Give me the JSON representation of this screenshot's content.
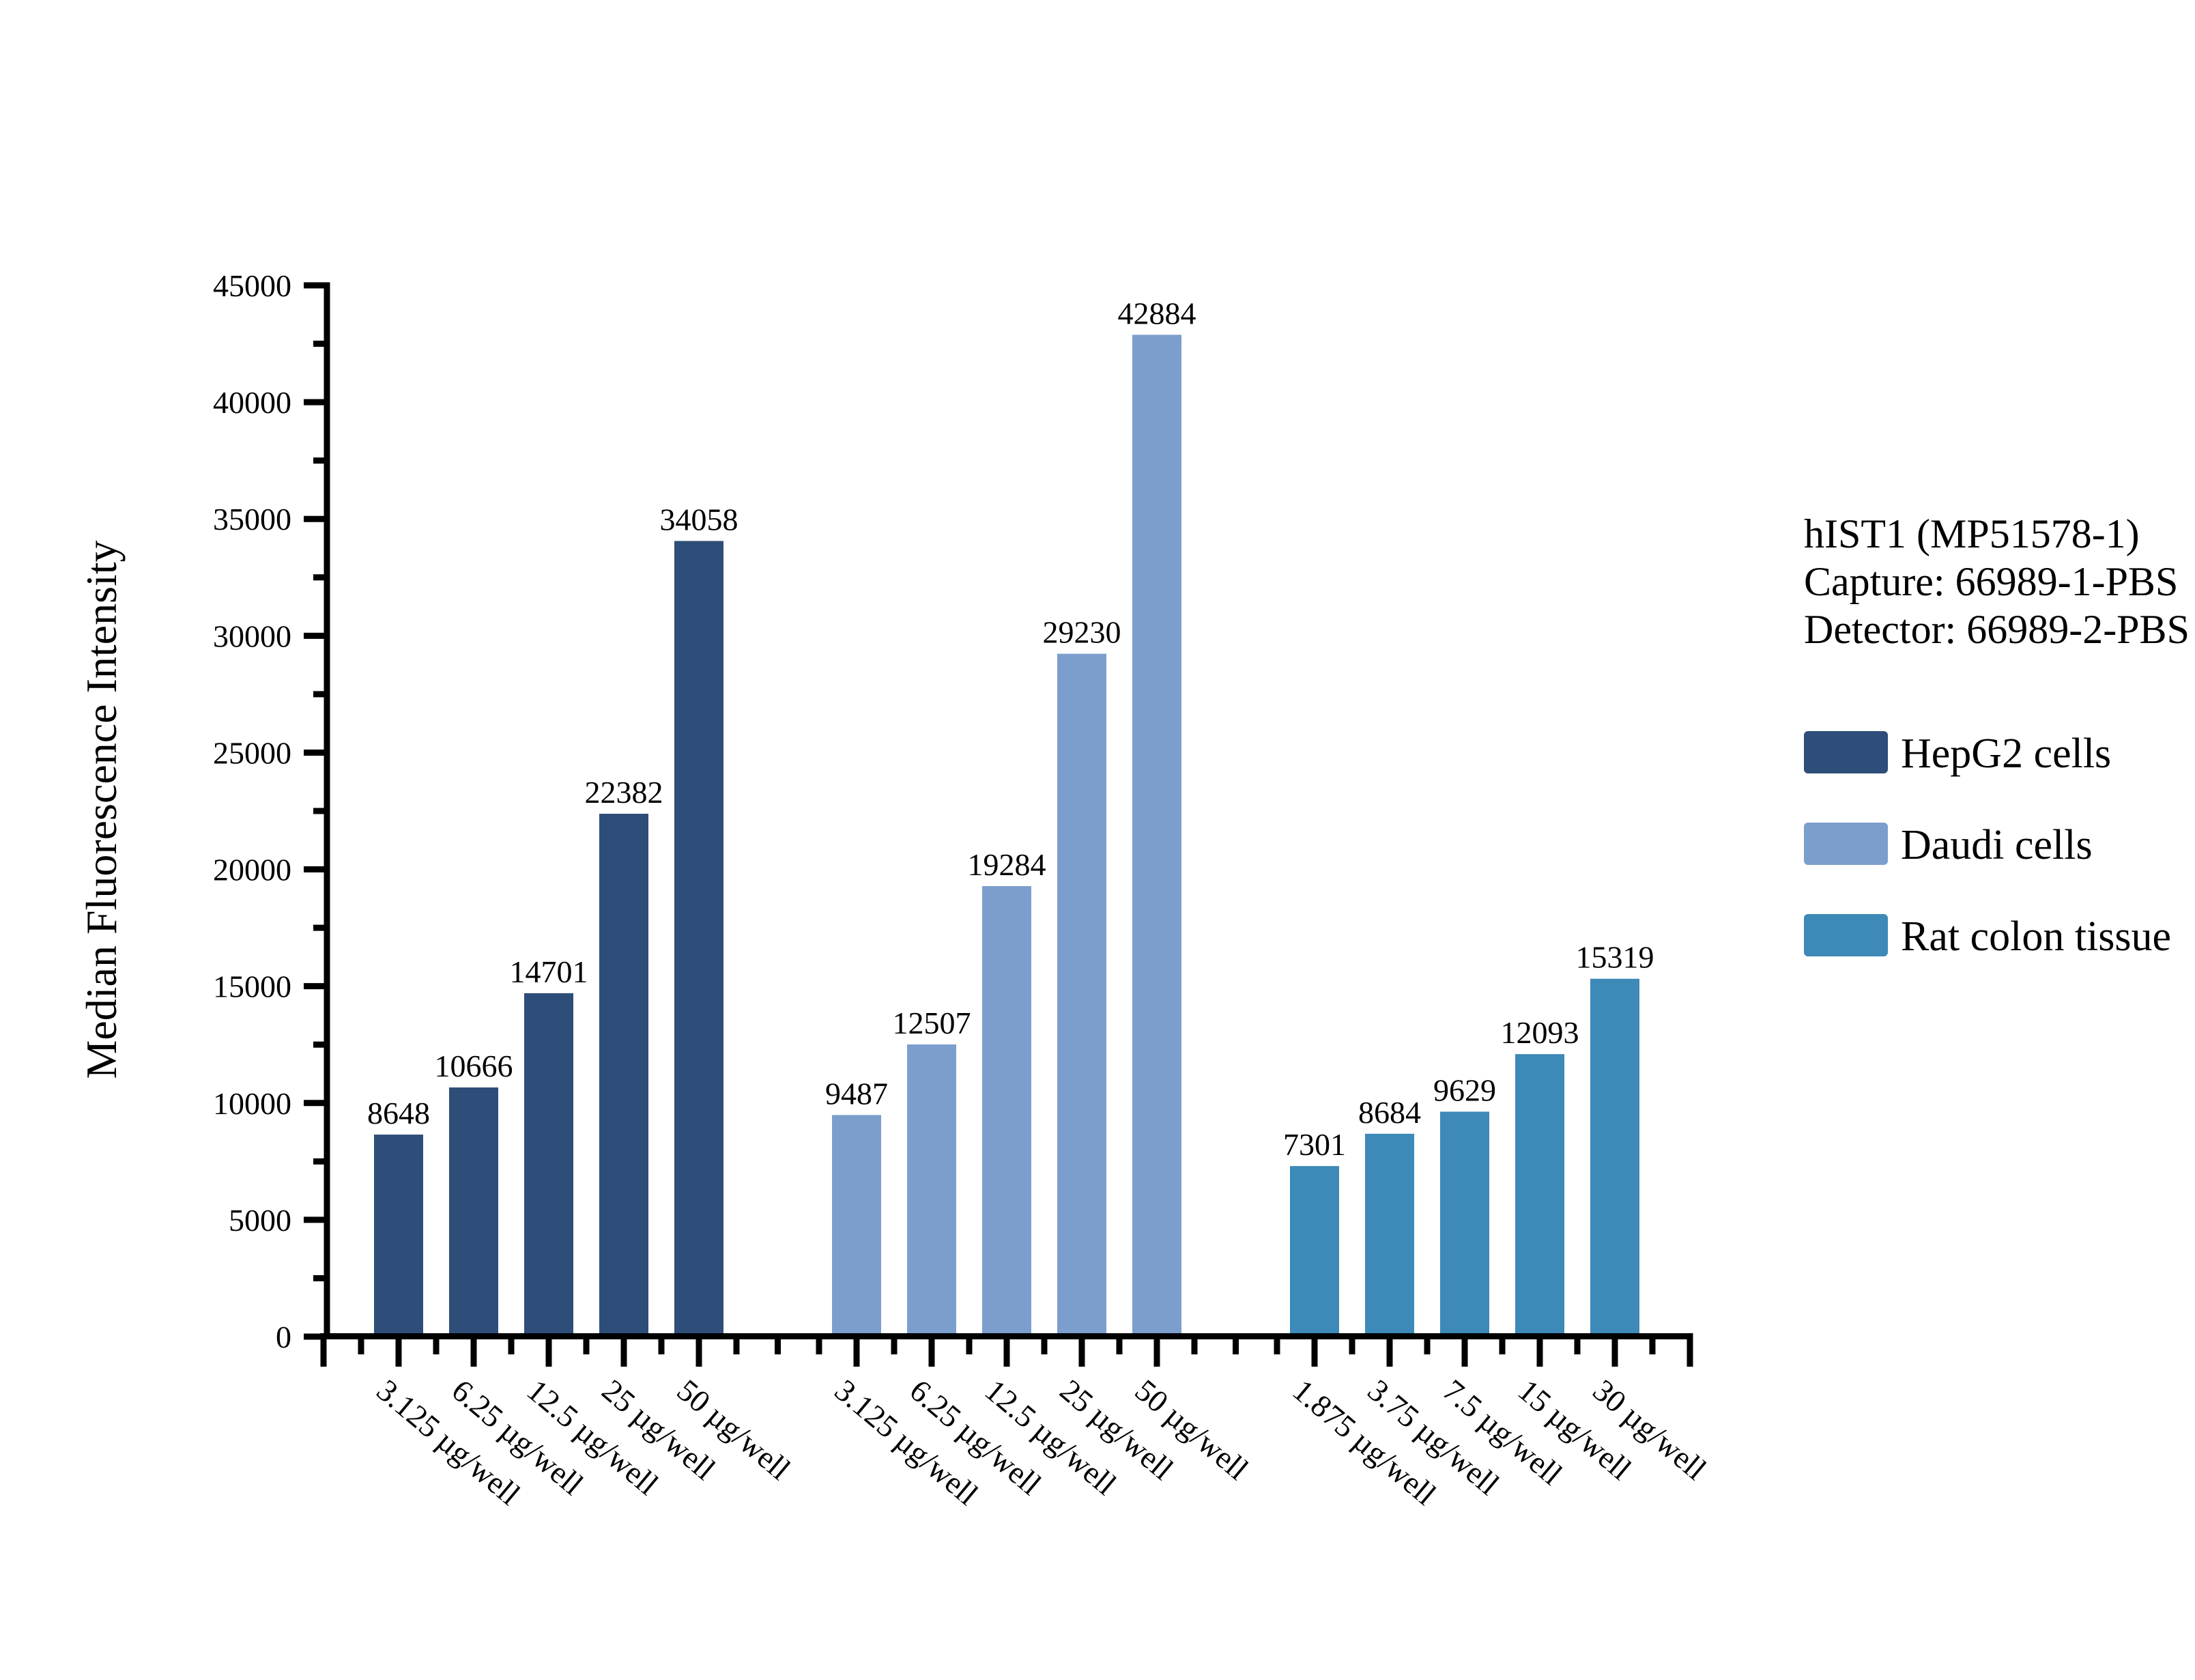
{
  "chart_data": {
    "type": "bar",
    "title": "",
    "xlabel": "",
    "ylabel": "Median Fluorescence Intensity",
    "ylim": [
      0,
      45000
    ],
    "y_major_step": 5000,
    "y_minor_step": 2500,
    "grid": false,
    "legend_position": "right",
    "bar_value_labels": true,
    "series": [
      {
        "name": "HepG2 cells",
        "color": "#2E4D79",
        "categories": [
          "3.125 µg/well",
          "6.25 µg/well",
          "12.5 µg/well",
          "25 µg/well",
          "50 µg/well"
        ],
        "values": [
          8648,
          10666,
          14701,
          22382,
          34058
        ]
      },
      {
        "name": "Daudi cells",
        "color": "#7C9ECD",
        "categories": [
          "3.125 µg/well",
          "6.25 µg/well",
          "12.5 µg/well",
          "25 µg/well",
          "50 µg/well"
        ],
        "values": [
          9487,
          12507,
          19284,
          29230,
          42884
        ]
      },
      {
        "name": "Rat colon tissue",
        "color": "#3D89B7",
        "categories": [
          "1.875 µg/well",
          "3.75 µg/well",
          "7.5 µg/well",
          "15 µg/well",
          "30 µg/well"
        ],
        "values": [
          7301,
          8684,
          9629,
          12093,
          15319
        ]
      }
    ],
    "y_tick_labels": [
      "0",
      "5000",
      "10000",
      "15000",
      "20000",
      "25000",
      "30000",
      "35000",
      "40000",
      "45000"
    ]
  },
  "annotation": {
    "line1": "hIST1 (MP51578-1)",
    "line2": "Capture: 66989-1-PBS",
    "line3": "Detector: 66989-2-PBS"
  }
}
